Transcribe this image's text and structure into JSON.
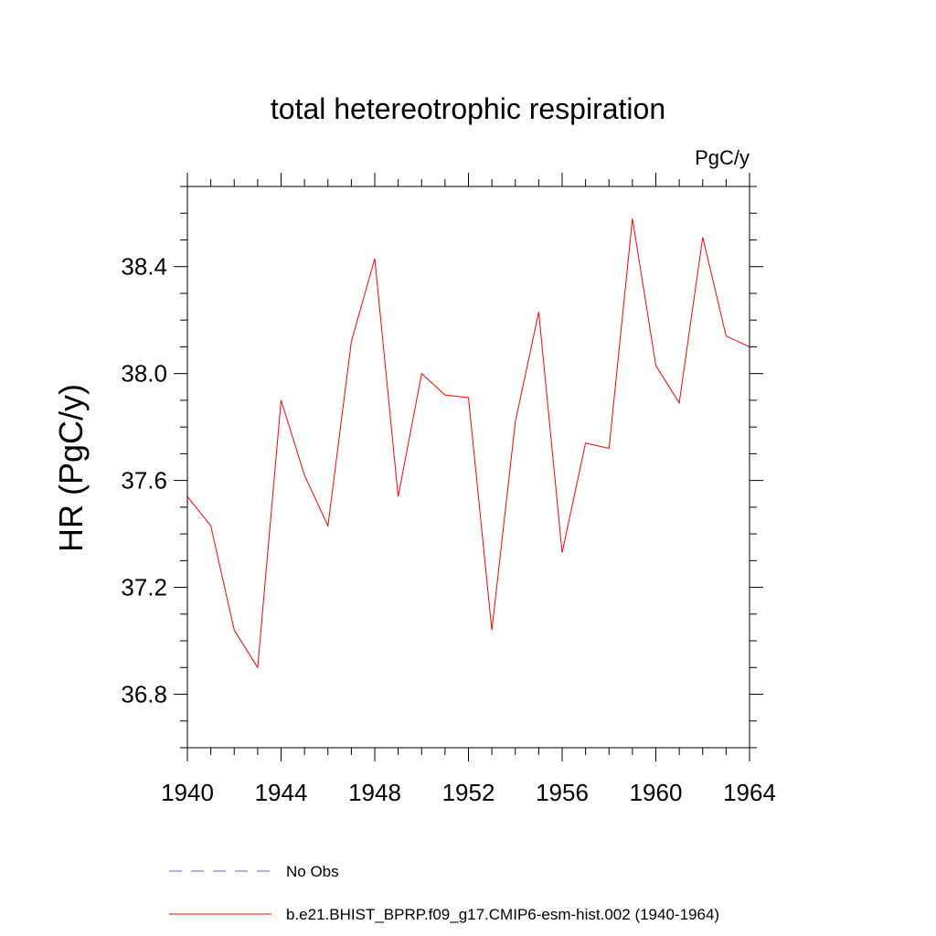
{
  "chart_data": {
    "type": "line",
    "title": "total hetereotrophic respiration",
    "units_label": "PgC/y",
    "xlabel": "",
    "ylabel": "HR  (PgC/y)",
    "xlim": [
      1940,
      1964
    ],
    "ylim": [
      36.6,
      38.7
    ],
    "x_ticks": [
      1940,
      1944,
      1948,
      1952,
      1956,
      1960,
      1964
    ],
    "x_tick_labels": [
      "1940",
      "1944",
      "1948",
      "1952",
      "1956",
      "1960",
      "1964"
    ],
    "y_ticks": [
      36.8,
      37.2,
      37.6,
      38.0,
      38.4
    ],
    "y_tick_labels": [
      "36.8",
      "37.2",
      "37.6",
      "38.0",
      "38.4"
    ],
    "x_minor_step": 1,
    "y_minor_step": 0.1,
    "grid": false,
    "legend_position": "bottom",
    "legend": [
      {
        "label": "No Obs",
        "color": "#6b5fc0",
        "style": "dashed"
      },
      {
        "label": "b.e21.BHIST_BPRP.f09_g17.CMIP6-esm-hist.002 (1940-1964)",
        "color": "#ff0000",
        "style": "solid"
      }
    ],
    "series": [
      {
        "name": "b.e21.BHIST_BPRP.f09_g17.CMIP6-esm-hist.002 (1940-1964)",
        "color": "#ff0000",
        "x": [
          1940,
          1941,
          1942,
          1943,
          1944,
          1945,
          1946,
          1947,
          1948,
          1949,
          1950,
          1951,
          1952,
          1953,
          1954,
          1955,
          1956,
          1957,
          1958,
          1959,
          1960,
          1961,
          1962,
          1963,
          1964
        ],
        "values": [
          37.54,
          37.43,
          37.04,
          36.9,
          37.9,
          37.62,
          37.43,
          38.12,
          38.43,
          37.54,
          38.0,
          37.92,
          37.91,
          37.04,
          37.82,
          38.23,
          37.33,
          37.74,
          37.72,
          38.58,
          38.03,
          37.89,
          38.51,
          38.14,
          38.1
        ]
      }
    ]
  }
}
